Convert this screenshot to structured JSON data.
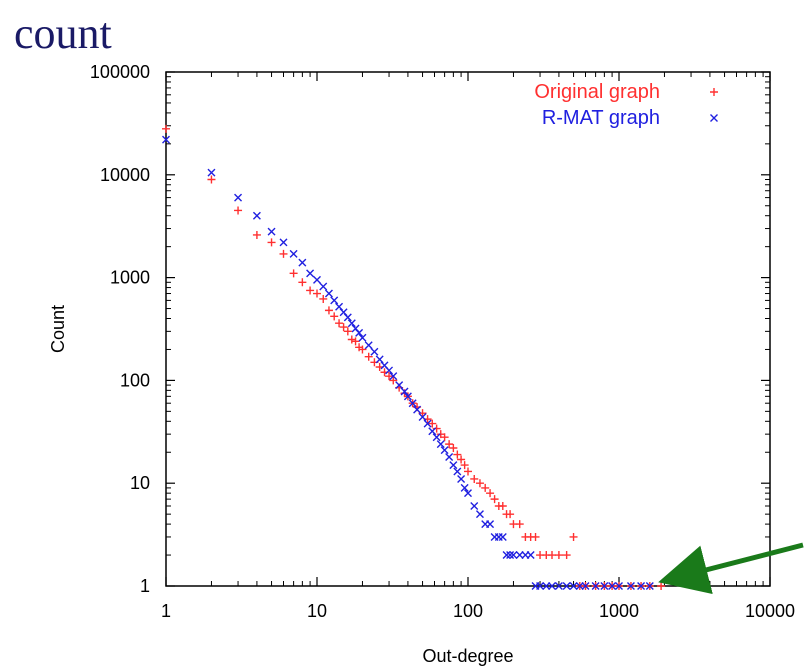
{
  "slide_heading": "count",
  "chart_data": {
    "type": "scatter",
    "xlabel": "Out-degree",
    "ylabel": "Count",
    "xscale": "log",
    "yscale": "log",
    "xlim": [
      1,
      10000
    ],
    "ylim": [
      1,
      100000
    ],
    "x_ticks": [
      1,
      10,
      100,
      1000,
      10000
    ],
    "y_ticks": [
      1,
      10,
      100,
      1000,
      10000,
      100000
    ],
    "x_tick_labels": [
      "1",
      "10",
      "100",
      "1000",
      "10000"
    ],
    "y_tick_labels": [
      "1",
      "10",
      "100",
      "1000",
      "10000",
      "100000"
    ],
    "grid": false,
    "legend_position": "top-right",
    "series": [
      {
        "name": "Original graph",
        "marker": "+",
        "color": "#ff3030",
        "x": [
          1,
          2,
          3,
          4,
          5,
          6,
          7,
          8,
          9,
          10,
          11,
          12,
          13,
          14,
          15,
          16,
          17,
          18,
          19,
          20,
          22,
          24,
          26,
          28,
          30,
          32,
          35,
          38,
          40,
          43,
          46,
          50,
          54,
          58,
          62,
          66,
          70,
          75,
          80,
          85,
          90,
          95,
          100,
          110,
          120,
          130,
          140,
          150,
          160,
          170,
          180,
          190,
          200,
          220,
          240,
          260,
          280,
          300,
          330,
          360,
          400,
          450,
          500,
          550,
          600,
          700,
          800,
          900,
          1000,
          1200,
          1400,
          1600,
          1900
        ],
        "y": [
          28000,
          9000,
          4500,
          2600,
          2200,
          1700,
          1100,
          900,
          750,
          700,
          620,
          480,
          420,
          360,
          330,
          300,
          250,
          240,
          210,
          200,
          170,
          150,
          135,
          120,
          110,
          100,
          85,
          75,
          70,
          60,
          55,
          48,
          42,
          38,
          34,
          30,
          28,
          24,
          22,
          19,
          17,
          15,
          13,
          11,
          10,
          9,
          8,
          7,
          6,
          6,
          5,
          5,
          4,
          4,
          3,
          3,
          3,
          2,
          2,
          2,
          2,
          2,
          3,
          1,
          1,
          1,
          1,
          1,
          1,
          1,
          1,
          1,
          1
        ]
      },
      {
        "name": "R-MAT graph",
        "marker": "x",
        "color": "#2020e0",
        "x": [
          1,
          2,
          3,
          4,
          5,
          6,
          7,
          8,
          9,
          10,
          11,
          12,
          13,
          14,
          15,
          16,
          17,
          18,
          19,
          20,
          22,
          24,
          26,
          28,
          30,
          32,
          35,
          38,
          40,
          43,
          46,
          50,
          54,
          58,
          62,
          66,
          70,
          75,
          80,
          85,
          90,
          95,
          100,
          110,
          120,
          130,
          140,
          150,
          160,
          170,
          180,
          190,
          200,
          220,
          240,
          260,
          280,
          300,
          330,
          360,
          400,
          450,
          500,
          550,
          600,
          700,
          800,
          900,
          1000,
          1200,
          1400,
          1600
        ],
        "y": [
          22000,
          10500,
          6000,
          4000,
          2800,
          2200,
          1700,
          1400,
          1100,
          950,
          820,
          700,
          600,
          520,
          460,
          410,
          360,
          320,
          290,
          260,
          220,
          190,
          160,
          140,
          125,
          110,
          90,
          78,
          70,
          60,
          52,
          44,
          38,
          32,
          28,
          24,
          21,
          18,
          15,
          13,
          11,
          9,
          8,
          6,
          5,
          4,
          4,
          3,
          3,
          3,
          2,
          2,
          2,
          2,
          2,
          2,
          1,
          1,
          1,
          1,
          1,
          1,
          1,
          1,
          1,
          1,
          1,
          1,
          1,
          1,
          1,
          1
        ]
      }
    ]
  },
  "annotation": {
    "type": "arrow",
    "color": "#1a7a1a",
    "points_to": {
      "x": 1900,
      "y": 1
    }
  }
}
